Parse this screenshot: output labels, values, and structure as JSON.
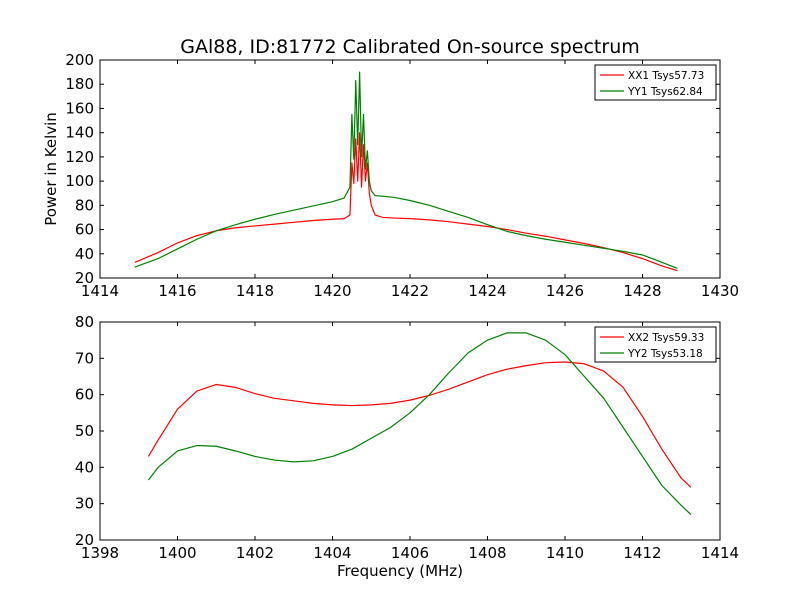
{
  "figure": {
    "title": "GAl88, ID:81772 Calibrated On-source spectrum",
    "background": "#ffffff"
  },
  "colors": {
    "xx": "#ff0000",
    "yy": "#008000",
    "axes": "#000000"
  },
  "chart_data": [
    {
      "type": "line",
      "title": "GAl88, ID:81772 Calibrated On-source spectrum",
      "xlabel": "",
      "ylabel": "Power in Kelvin",
      "xlim": [
        1414,
        1430
      ],
      "ylim": [
        20,
        200
      ],
      "xticks": [
        1414,
        1416,
        1418,
        1420,
        1422,
        1424,
        1426,
        1428,
        1430
      ],
      "yticks": [
        20,
        40,
        60,
        80,
        100,
        120,
        140,
        160,
        180,
        200
      ],
      "grid": false,
      "legend_position": "top-right",
      "series": [
        {
          "name": "XX1 Tsys57.73",
          "color": "#ff0000",
          "x": [
            1414.9,
            1415.5,
            1416.0,
            1416.5,
            1417.0,
            1417.5,
            1418.0,
            1418.5,
            1419.0,
            1419.5,
            1420.0,
            1420.3,
            1420.45,
            1420.5,
            1420.55,
            1420.6,
            1420.65,
            1420.7,
            1420.75,
            1420.8,
            1420.85,
            1420.9,
            1420.95,
            1421.0,
            1421.1,
            1421.3,
            1421.6,
            1422.0,
            1422.5,
            1423.0,
            1423.5,
            1424.0,
            1424.5,
            1425.0,
            1425.5,
            1426.0,
            1426.5,
            1427.0,
            1427.5,
            1428.0,
            1428.5,
            1428.9
          ],
          "y": [
            33,
            41,
            49,
            55,
            59,
            61.5,
            63,
            64.5,
            66,
            67.5,
            68.5,
            69,
            72,
            115,
            98,
            135,
            100,
            140,
            95,
            130,
            100,
            115,
            90,
            80,
            72,
            70,
            69.5,
            69,
            68,
            66.5,
            64.5,
            62.5,
            60,
            57,
            54.5,
            51.5,
            48.5,
            45,
            41,
            36,
            30,
            26
          ]
        },
        {
          "name": "YY1 Tsys62.84",
          "color": "#008000",
          "x": [
            1414.9,
            1415.5,
            1416.0,
            1416.5,
            1417.0,
            1417.5,
            1418.0,
            1418.5,
            1419.0,
            1419.5,
            1420.0,
            1420.3,
            1420.45,
            1420.5,
            1420.55,
            1420.6,
            1420.65,
            1420.7,
            1420.75,
            1420.8,
            1420.85,
            1420.9,
            1420.95,
            1421.0,
            1421.1,
            1421.3,
            1421.6,
            1422.0,
            1422.5,
            1423.0,
            1423.5,
            1424.0,
            1424.5,
            1425.0,
            1425.5,
            1426.0,
            1426.5,
            1427.0,
            1427.5,
            1428.0,
            1428.5,
            1428.9
          ],
          "y": [
            29,
            36,
            44,
            52,
            59,
            64,
            68.5,
            72.5,
            76,
            79.5,
            83,
            86,
            95,
            155,
            118,
            183,
            130,
            190,
            120,
            155,
            110,
            125,
            100,
            92,
            88,
            87.5,
            86.5,
            84,
            80,
            75,
            70,
            64,
            58.5,
            55,
            52,
            49.5,
            47,
            44.5,
            42,
            39,
            33,
            28
          ]
        }
      ]
    },
    {
      "type": "line",
      "title": "",
      "xlabel": "Frequency (MHz)",
      "ylabel": "",
      "xlim": [
        1398,
        1414
      ],
      "ylim": [
        20,
        80
      ],
      "xticks": [
        1398,
        1400,
        1402,
        1404,
        1406,
        1408,
        1410,
        1412,
        1414
      ],
      "yticks": [
        20,
        30,
        40,
        50,
        60,
        70,
        80
      ],
      "grid": false,
      "legend_position": "top-right",
      "series": [
        {
          "name": "XX2 Tsys59.33",
          "color": "#ff0000",
          "x": [
            1399.25,
            1399.5,
            1400.0,
            1400.5,
            1401.0,
            1401.5,
            1402.0,
            1402.5,
            1403.0,
            1403.5,
            1404.0,
            1404.5,
            1405.0,
            1405.5,
            1406.0,
            1406.5,
            1407.0,
            1407.5,
            1408.0,
            1408.5,
            1409.0,
            1409.5,
            1410.0,
            1410.5,
            1411.0,
            1411.5,
            1412.0,
            1412.5,
            1413.0,
            1413.25
          ],
          "y": [
            43,
            47.5,
            56,
            61,
            62.8,
            62,
            60.3,
            59,
            58.3,
            57.6,
            57.2,
            57,
            57.2,
            57.6,
            58.5,
            59.8,
            61.5,
            63.5,
            65.5,
            67,
            68,
            68.8,
            69,
            68.5,
            66.5,
            62,
            54,
            45,
            37,
            34.5
          ]
        },
        {
          "name": "YY2 Tsys53.18",
          "color": "#008000",
          "x": [
            1399.25,
            1399.5,
            1400.0,
            1400.5,
            1401.0,
            1401.5,
            1402.0,
            1402.5,
            1403.0,
            1403.5,
            1404.0,
            1404.5,
            1405.0,
            1405.5,
            1406.0,
            1406.5,
            1407.0,
            1407.5,
            1408.0,
            1408.5,
            1409.0,
            1409.5,
            1410.0,
            1410.5,
            1411.0,
            1411.5,
            1412.0,
            1412.5,
            1413.0,
            1413.25
          ],
          "y": [
            36.5,
            40,
            44.5,
            46,
            45.8,
            44.5,
            43,
            42,
            41.5,
            41.8,
            43,
            45,
            48,
            51,
            55,
            60,
            66,
            71.5,
            75,
            77,
            77,
            75,
            71,
            65,
            59,
            51,
            43,
            35,
            29.5,
            27
          ]
        }
      ]
    }
  ]
}
